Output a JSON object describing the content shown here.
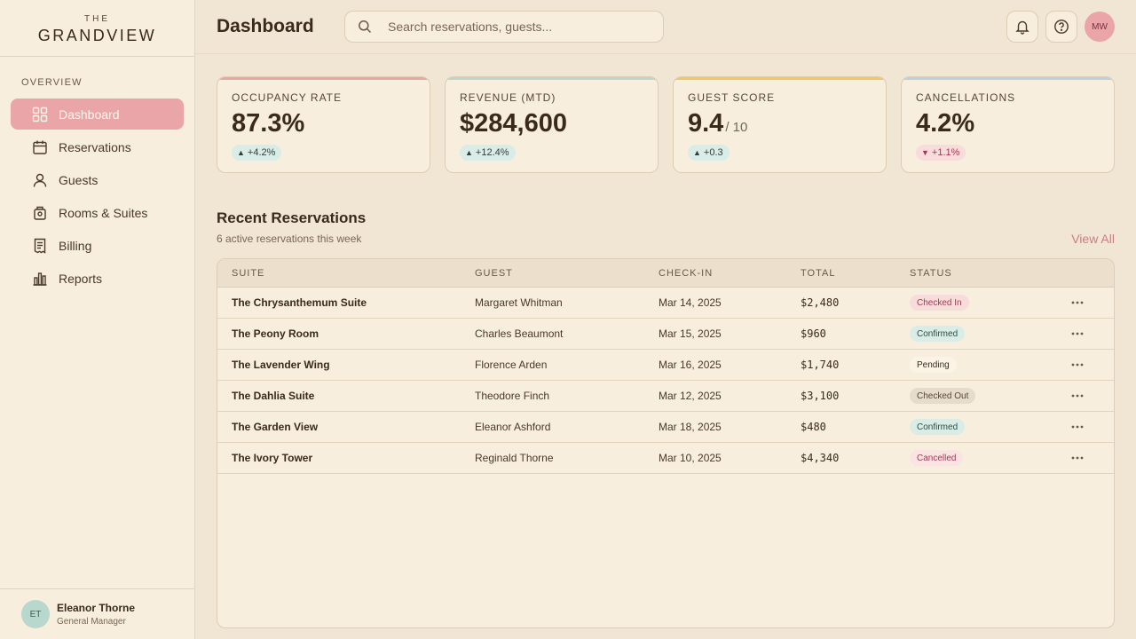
{
  "brand": {
    "top": "THE",
    "name": "GRANDVIEW"
  },
  "nav": {
    "section": "OVERVIEW",
    "items": [
      {
        "label": "Dashboard",
        "icon": "dashboard-icon",
        "active": true
      },
      {
        "label": "Reservations",
        "icon": "calendar-icon"
      },
      {
        "label": "Guests",
        "icon": "user-icon"
      },
      {
        "label": "Rooms & Suites",
        "icon": "room-icon"
      },
      {
        "label": "Billing",
        "icon": "receipt-icon"
      },
      {
        "label": "Reports",
        "icon": "chart-icon"
      }
    ]
  },
  "user": {
    "initials": "ET",
    "name": "Eleanor Thorne",
    "role": "General Manager"
  },
  "header": {
    "title": "Dashboard",
    "search_placeholder": "Search reservations, guests...",
    "avatar": "MW"
  },
  "stats": [
    {
      "label": "OCCUPANCY RATE",
      "value": "87.3%",
      "suffix": "",
      "delta": "+4.2%",
      "direction": "up",
      "accent": "#e9a5a7"
    },
    {
      "label": "REVENUE (MTD)",
      "value": "$284,600",
      "suffix": "",
      "delta": "+12.4%",
      "direction": "up",
      "accent": "#b9d8cd"
    },
    {
      "label": "GUEST SCORE",
      "value": "9.4",
      "suffix": "/ 10",
      "delta": "+0.3",
      "direction": "up",
      "accent": "#efc85e"
    },
    {
      "label": "CANCELLATIONS",
      "value": "4.2%",
      "suffix": "",
      "delta": "+1.1%",
      "direction": "down",
      "accent": "#b7d1e6"
    }
  ],
  "reservations": {
    "title": "Recent Reservations",
    "subtitle": "6 active reservations this week",
    "view_all": "View All",
    "columns": [
      "SUITE",
      "GUEST",
      "CHECK-IN",
      "TOTAL",
      "STATUS"
    ],
    "rows": [
      {
        "suite": "The Chrysanthemum Suite",
        "guest": "Margaret Whitman",
        "checkin": "Mar 14, 2025",
        "total": "$2,480",
        "status": "Checked In",
        "status_key": "checkedin"
      },
      {
        "suite": "The Peony Room",
        "guest": "Charles Beaumont",
        "checkin": "Mar 15, 2025",
        "total": "$960",
        "status": "Confirmed",
        "status_key": "confirmed"
      },
      {
        "suite": "The Lavender Wing",
        "guest": "Florence Arden",
        "checkin": "Mar 16, 2025",
        "total": "$1,740",
        "status": "Pending",
        "status_key": "pending"
      },
      {
        "suite": "The Dahlia Suite",
        "guest": "Theodore Finch",
        "checkin": "Mar 12, 2025",
        "total": "$3,100",
        "status": "Checked Out",
        "status_key": "checkedout"
      },
      {
        "suite": "The Garden View",
        "guest": "Eleanor Ashford",
        "checkin": "Mar 18, 2025",
        "total": "$480",
        "status": "Confirmed",
        "status_key": "confirmed"
      },
      {
        "suite": "The Ivory Tower",
        "guest": "Reginald Thorne",
        "checkin": "Mar 10, 2025",
        "total": "$4,340",
        "status": "Cancelled",
        "status_key": "cancelled"
      }
    ]
  },
  "colors": {
    "accent": "#e9a5a7",
    "link": "#cf7b85",
    "background": "#f1e6d3",
    "surface": "#f7eedd"
  }
}
